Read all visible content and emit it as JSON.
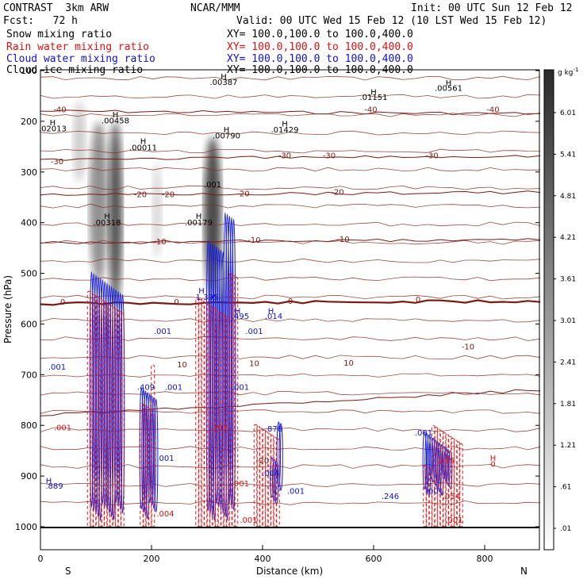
{
  "header": {
    "model": "CONTRAST  3km ARW",
    "center": "NCAR/MMM",
    "init": "Init: 00 UTC Sun 12 Feb 12",
    "fcst": "Fcst:   72 h",
    "valid": "Valid: 00 UTC Wed 15 Feb 12 (10 LST Wed 15 Feb 12)"
  },
  "fields": [
    {
      "label": "Snow mixing ratio",
      "xy": "XY= 100.0,100.0 to 100.0,400.0",
      "color": "#000000"
    },
    {
      "label": "Rain water mixing ratio",
      "xy": "XY= 100.0,100.0 to 100.0,400.0",
      "color": "#dd1111"
    },
    {
      "label": "Cloud water mixing ratio",
      "xy": "XY= 100.0,100.0 to 100.0,400.0",
      "color": "#1111cc"
    },
    {
      "label": "Cloud ice mixing ratio",
      "xy": "XY= 100.0,100.0 to 100.0,400.0",
      "color": "#000000"
    }
  ],
  "chart_data": {
    "type": "heatmap",
    "xlabel": "Distance (km)",
    "ylabel": "Pressure (hPa)",
    "xlim": [
      0,
      900
    ],
    "ylim": [
      1000,
      100
    ],
    "x_ticks": [
      0,
      200,
      400,
      600,
      800
    ],
    "y_ticks": [
      100,
      200,
      300,
      400,
      500,
      600,
      700,
      800,
      900,
      1000
    ],
    "end_labels": {
      "left": "S",
      "right": "N"
    },
    "colorbar": {
      "unit": "g kg",
      "unit_exp": "-1",
      "ticks": [
        ".01",
        ".61",
        "1.21",
        "1.81",
        "2.41",
        "3.01",
        "3.61",
        "4.21",
        "4.81",
        "5.41",
        "6.01"
      ],
      "color_low": "#ffffff",
      "color_high": "#2a2a2a"
    },
    "snow_plumes": [
      {
        "x": 70,
        "p_top": 160,
        "p_bot": 320,
        "width": 16,
        "intensity": 0.25
      },
      {
        "x": 105,
        "p_top": 200,
        "p_bot": 520,
        "width": 24,
        "intensity": 0.55
      },
      {
        "x": 135,
        "p_top": 200,
        "p_bot": 560,
        "width": 18,
        "intensity": 0.85
      },
      {
        "x": 210,
        "p_top": 280,
        "p_bot": 470,
        "width": 12,
        "intensity": 0.2
      },
      {
        "x": 310,
        "p_top": 230,
        "p_bot": 540,
        "width": 22,
        "intensity": 0.9
      }
    ],
    "isotherms": [
      {
        "label": "-40",
        "p_left": 180,
        "p_right": 185
      },
      {
        "label": "-30",
        "p_left": 275,
        "p_right": 268
      },
      {
        "label": "-20",
        "p_left": 345,
        "p_right": 340
      },
      {
        "label": "-10",
        "p_left": 440,
        "p_right": 433
      },
      {
        "label": "0",
        "p_left": 560,
        "p_right": 555,
        "bold": true
      },
      {
        "label": "10",
        "p_left": 780,
        "p_right": 730
      }
    ],
    "isotherm_labels": [
      {
        "text": "-40",
        "x": 35,
        "p": 182
      },
      {
        "text": "-40",
        "x": 595,
        "p": 182
      },
      {
        "text": "-40",
        "x": 815,
        "p": 182
      },
      {
        "text": "-30",
        "x": 30,
        "p": 285
      },
      {
        "text": "-30",
        "x": 440,
        "p": 273
      },
      {
        "text": "-30",
        "x": 520,
        "p": 273
      },
      {
        "text": "-30",
        "x": 705,
        "p": 273
      },
      {
        "text": "-20",
        "x": 180,
        "p": 350
      },
      {
        "text": "-20",
        "x": 230,
        "p": 350
      },
      {
        "text": "-20",
        "x": 365,
        "p": 348
      },
      {
        "text": "-20",
        "x": 535,
        "p": 345
      },
      {
        "text": "-10",
        "x": 215,
        "p": 443
      },
      {
        "text": "-10",
        "x": 385,
        "p": 440
      },
      {
        "text": "-10",
        "x": 545,
        "p": 438
      },
      {
        "text": "0",
        "x": 40,
        "p": 562
      },
      {
        "text": "0",
        "x": 245,
        "p": 562
      },
      {
        "text": "0",
        "x": 450,
        "p": 560
      },
      {
        "text": "0",
        "x": 680,
        "p": 557
      },
      {
        "text": "10",
        "x": 255,
        "p": 685
      },
      {
        "text": "10",
        "x": 385,
        "p": 683
      },
      {
        "text": "10",
        "x": 555,
        "p": 682
      },
      {
        "text": "-20",
        "x": 400,
        "p": 875
      },
      {
        "text": "-10",
        "x": 770,
        "p": 650
      }
    ],
    "cloud_ice_labels": [
      {
        "text": "H",
        "x": 22,
        "p": 208
      },
      {
        "text": ".02013",
        "x": 22,
        "p": 220
      },
      {
        "text": "H",
        "x": 135,
        "p": 192
      },
      {
        "text": ".00458",
        "x": 135,
        "p": 204
      },
      {
        "text": "H",
        "x": 185,
        "p": 245
      },
      {
        "text": ".00011",
        "x": 185,
        "p": 257
      },
      {
        "text": "H",
        "x": 330,
        "p": 117
      },
      {
        "text": ".00387",
        "x": 330,
        "p": 128
      },
      {
        "text": "H",
        "x": 335,
        "p": 222
      },
      {
        "text": ".00790",
        "x": 335,
        "p": 234
      },
      {
        "text": "H",
        "x": 440,
        "p": 210
      },
      {
        "text": ".01429",
        "x": 440,
        "p": 222
      },
      {
        "text": "H",
        "x": 600,
        "p": 148
      },
      {
        "text": ".01151",
        "x": 600,
        "p": 158
      },
      {
        "text": "H",
        "x": 735,
        "p": 130
      },
      {
        "text": ".00561",
        "x": 735,
        "p": 140
      },
      {
        "text": "H",
        "x": 120,
        "p": 393
      },
      {
        "text": ".00318",
        "x": 120,
        "p": 405
      },
      {
        "text": "H",
        "x": 285,
        "p": 393
      },
      {
        "text": ".00179",
        "x": 285,
        "p": 405
      },
      {
        "text": ".001",
        "x": 310,
        "p": 330
      }
    ],
    "rain_labels": [
      {
        "text": "H",
        "x": 815,
        "p": 870
      },
      {
        "text": "0",
        "x": 815,
        "p": 882
      },
      {
        "text": ".001",
        "x": 40,
        "p": 810
      },
      {
        "text": ".004",
        "x": 225,
        "p": 980
      },
      {
        "text": ".001",
        "x": 375,
        "p": 992
      },
      {
        "text": ".001",
        "x": 745,
        "p": 992
      },
      {
        "text": ".025",
        "x": 730,
        "p": 875
      },
      {
        "text": ".054",
        "x": 740,
        "p": 945
      },
      {
        "text": ".201",
        "x": 322,
        "p": 810
      },
      {
        "text": ".001",
        "x": 360,
        "p": 920
      }
    ],
    "cloud_water_labels": [
      {
        "text": ".001",
        "x": 30,
        "p": 690
      },
      {
        "text": "H",
        "x": 15,
        "p": 915
      },
      {
        "text": ".889",
        "x": 25,
        "p": 925
      },
      {
        "text": ".001",
        "x": 220,
        "p": 620
      },
      {
        "text": ".001",
        "x": 240,
        "p": 730
      },
      {
        "text": ".001",
        "x": 225,
        "p": 870
      },
      {
        "text": ".409",
        "x": 190,
        "p": 730
      },
      {
        "text": ".001",
        "x": 360,
        "p": 730
      },
      {
        "text": "H",
        "x": 290,
        "p": 540
      },
      {
        "text": "1.395",
        "x": 300,
        "p": 552
      },
      {
        "text": "H",
        "x": 355,
        "p": 580
      },
      {
        "text": ".495",
        "x": 360,
        "p": 590
      },
      {
        "text": "H",
        "x": 415,
        "p": 580
      },
      {
        "text": ".014",
        "x": 420,
        "p": 590
      },
      {
        "text": ".001",
        "x": 385,
        "p": 620
      },
      {
        "text": ".878",
        "x": 420,
        "p": 812
      },
      {
        "text": ".004",
        "x": 415,
        "p": 900
      },
      {
        "text": ".001",
        "x": 460,
        "p": 935
      },
      {
        "text": ".246",
        "x": 630,
        "p": 945
      },
      {
        "text": ".001",
        "x": 710,
        "p": 935
      },
      {
        "text": ".001",
        "x": 690,
        "p": 820
      }
    ],
    "cloud_water_columns": [
      {
        "x1": 90,
        "x2": 150,
        "p_top": 480,
        "p_bot": 990
      },
      {
        "x1": 180,
        "x2": 210,
        "p_top": 690,
        "p_bot": 990
      },
      {
        "x1": 300,
        "x2": 350,
        "p_top": 380,
        "p_bot": 990
      },
      {
        "x1": 415,
        "x2": 435,
        "p_top": 790,
        "p_bot": 960
      },
      {
        "x1": 690,
        "x2": 740,
        "p_top": 800,
        "p_bot": 940
      }
    ],
    "rain_columns": [
      {
        "x1": 85,
        "x2": 150,
        "p_top": 520,
        "p_bot": 1000
      },
      {
        "x1": 180,
        "x2": 205,
        "p_top": 680,
        "p_bot": 1000
      },
      {
        "x1": 280,
        "x2": 355,
        "p_top": 500,
        "p_bot": 1000
      },
      {
        "x1": 385,
        "x2": 430,
        "p_top": 780,
        "p_bot": 1000
      },
      {
        "x1": 690,
        "x2": 760,
        "p_top": 800,
        "p_bot": 1000
      }
    ]
  }
}
